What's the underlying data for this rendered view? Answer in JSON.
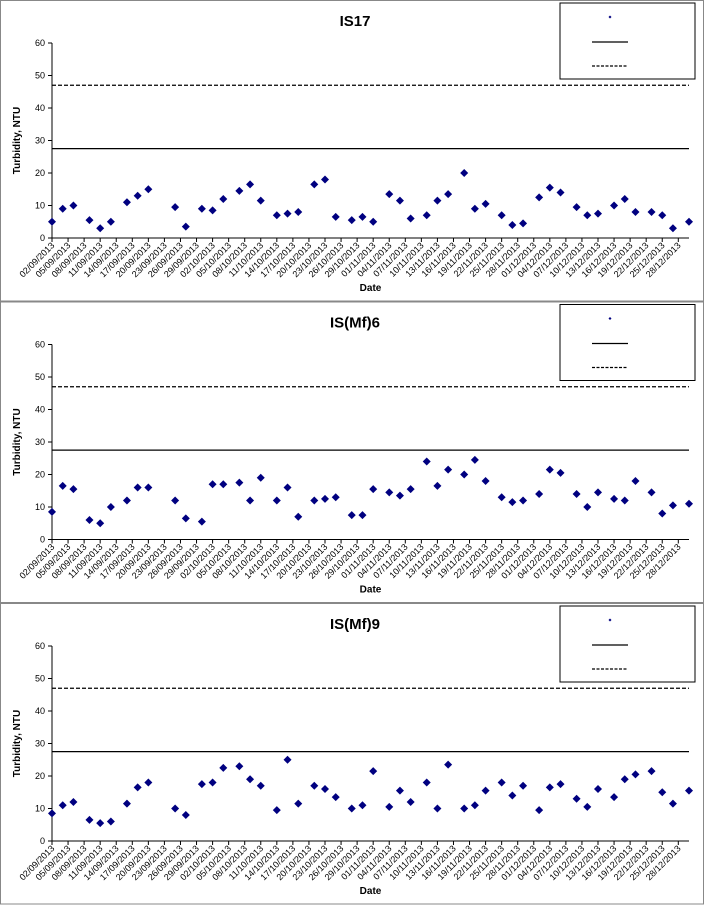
{
  "chart_data": [
    {
      "type": "scatter",
      "title": "IS17",
      "xlabel": "Date",
      "ylabel": "Turbidity, NTU",
      "x": [
        "02/09/2013",
        "04/09/2013",
        "06/09/2013",
        "09/09/2013",
        "11/09/2013",
        "13/09/2013",
        "16/09/2013",
        "18/09/2013",
        "20/09/2013",
        "25/09/2013",
        "27/09/2013",
        "30/09/2013",
        "02/10/2013",
        "04/10/2013",
        "07/10/2013",
        "09/10/2013",
        "11/10/2013",
        "14/10/2013",
        "16/10/2013",
        "18/10/2013",
        "21/10/2013",
        "23/10/2013",
        "25/10/2013",
        "28/10/2013",
        "30/10/2013",
        "01/11/2013",
        "04/11/2013",
        "06/11/2013",
        "08/11/2013",
        "11/11/2013",
        "13/11/2013",
        "15/11/2013",
        "18/11/2013",
        "20/11/2013",
        "22/11/2013",
        "25/11/2013",
        "27/11/2013",
        "29/11/2013",
        "02/12/2013",
        "04/12/2013",
        "06/12/2013",
        "09/12/2013",
        "11/12/2013",
        "13/12/2013",
        "16/12/2013",
        "18/12/2013",
        "20/12/2013",
        "23/12/2013",
        "25/12/2013",
        "27/12/2013",
        "30/12/2013"
      ],
      "series": [
        {
          "color": "#000080",
          "values": [
            5,
            9,
            10,
            5.5,
            3,
            5,
            11,
            13,
            15,
            9.5,
            3.5,
            9,
            8.5,
            12,
            14.5,
            16.5,
            11.5,
            7,
            7.5,
            8,
            16.5,
            18,
            6.5,
            5.5,
            6.5,
            5,
            13.5,
            11.5,
            6,
            7,
            11.5,
            13.5,
            20,
            9,
            10.5,
            7,
            4,
            4.5,
            12.5,
            15.5,
            14,
            9.5,
            7,
            7.5,
            10,
            12,
            8,
            8,
            7,
            3,
            5
          ]
        }
      ],
      "hlines": [
        {
          "value": 27.5,
          "style": "solid"
        },
        {
          "value": 47,
          "style": "dashed"
        }
      ],
      "legend": "upper right",
      "xlim": [
        "02/09/2013",
        "30/12/2013"
      ],
      "xticks": [
        "02/09/2013",
        "05/09/2013",
        "08/09/2013",
        "11/09/2013",
        "14/09/2013",
        "17/09/2013",
        "20/09/2013",
        "23/09/2013",
        "26/09/2013",
        "29/09/2013",
        "02/10/2013",
        "05/10/2013",
        "08/10/2013",
        "11/10/2013",
        "14/10/2013",
        "17/10/2013",
        "20/10/2013",
        "23/10/2013",
        "26/10/2013",
        "29/10/2013",
        "01/11/2013",
        "04/11/2013",
        "07/11/2013",
        "10/11/2013",
        "13/11/2013",
        "16/11/2013",
        "19/11/2013",
        "22/11/2013",
        "25/11/2013",
        "28/11/2013",
        "01/12/2013",
        "04/12/2013",
        "07/12/2013",
        "10/12/2013",
        "13/12/2013",
        "16/12/2013",
        "19/12/2013",
        "22/12/2013",
        "25/12/2013",
        "28/12/2013"
      ],
      "ylim": [
        0,
        60
      ],
      "yticks": [
        0,
        10,
        20,
        30,
        40,
        50,
        60
      ]
    },
    {
      "type": "scatter",
      "title": "IS(Mf)6",
      "xlabel": "Date",
      "ylabel": "Turbidity, NTU",
      "x": [
        "02/09/2013",
        "04/09/2013",
        "06/09/2013",
        "09/09/2013",
        "11/09/2013",
        "13/09/2013",
        "16/09/2013",
        "18/09/2013",
        "20/09/2013",
        "25/09/2013",
        "27/09/2013",
        "30/09/2013",
        "02/10/2013",
        "04/10/2013",
        "07/10/2013",
        "09/10/2013",
        "11/10/2013",
        "14/10/2013",
        "16/10/2013",
        "18/10/2013",
        "21/10/2013",
        "23/10/2013",
        "25/10/2013",
        "28/10/2013",
        "30/10/2013",
        "01/11/2013",
        "04/11/2013",
        "06/11/2013",
        "08/11/2013",
        "11/11/2013",
        "13/11/2013",
        "15/11/2013",
        "18/11/2013",
        "20/11/2013",
        "22/11/2013",
        "25/11/2013",
        "27/11/2013",
        "29/11/2013",
        "02/12/2013",
        "04/12/2013",
        "06/12/2013",
        "09/12/2013",
        "11/12/2013",
        "13/12/2013",
        "16/12/2013",
        "18/12/2013",
        "20/12/2013",
        "23/12/2013",
        "25/12/2013",
        "27/12/2013",
        "30/12/2013"
      ],
      "series": [
        {
          "color": "#000080",
          "values": [
            8.5,
            16.5,
            15.5,
            6,
            5,
            10,
            12,
            16,
            16,
            12,
            6.5,
            5.5,
            17,
            17,
            17.5,
            12,
            19,
            12,
            16,
            7,
            12,
            12.5,
            13,
            7.5,
            7.5,
            15.5,
            14.5,
            13.5,
            15.5,
            24,
            16.5,
            21.5,
            20,
            24.5,
            18,
            13,
            11.5,
            12,
            14,
            21.5,
            20.5,
            14,
            10,
            14.5,
            12.5,
            12,
            18,
            14.5,
            8,
            10.5,
            11
          ]
        }
      ],
      "hlines": [
        {
          "value": 27.5,
          "style": "solid"
        },
        {
          "value": 47,
          "style": "dashed"
        }
      ],
      "legend": "upper right",
      "xlim": [
        "02/09/2013",
        "30/12/2013"
      ],
      "xticks": [
        "02/09/2013",
        "05/09/2013",
        "08/09/2013",
        "11/09/2013",
        "14/09/2013",
        "17/09/2013",
        "20/09/2013",
        "23/09/2013",
        "26/09/2013",
        "29/09/2013",
        "02/10/2013",
        "05/10/2013",
        "08/10/2013",
        "11/10/2013",
        "14/10/2013",
        "17/10/2013",
        "20/10/2013",
        "23/10/2013",
        "26/10/2013",
        "29/10/2013",
        "01/11/2013",
        "04/11/2013",
        "07/11/2013",
        "10/11/2013",
        "13/11/2013",
        "16/11/2013",
        "19/11/2013",
        "22/11/2013",
        "25/11/2013",
        "28/11/2013",
        "01/12/2013",
        "04/12/2013",
        "07/12/2013",
        "10/12/2013",
        "13/12/2013",
        "16/12/2013",
        "19/12/2013",
        "22/12/2013",
        "25/12/2013",
        "28/12/2013"
      ],
      "ylim": [
        0,
        60
      ],
      "yticks": [
        0,
        10,
        20,
        30,
        40,
        50,
        60
      ]
    },
    {
      "type": "scatter",
      "title": "IS(Mf)9",
      "xlabel": "Date",
      "ylabel": "Turbidity, NTU",
      "x": [
        "02/09/2013",
        "04/09/2013",
        "06/09/2013",
        "09/09/2013",
        "11/09/2013",
        "13/09/2013",
        "16/09/2013",
        "18/09/2013",
        "20/09/2013",
        "25/09/2013",
        "27/09/2013",
        "30/09/2013",
        "02/10/2013",
        "04/10/2013",
        "07/10/2013",
        "09/10/2013",
        "11/10/2013",
        "14/10/2013",
        "16/10/2013",
        "18/10/2013",
        "21/10/2013",
        "23/10/2013",
        "25/10/2013",
        "28/10/2013",
        "30/10/2013",
        "01/11/2013",
        "04/11/2013",
        "06/11/2013",
        "08/11/2013",
        "11/11/2013",
        "13/11/2013",
        "15/11/2013",
        "18/11/2013",
        "20/11/2013",
        "22/11/2013",
        "25/11/2013",
        "27/11/2013",
        "29/11/2013",
        "02/12/2013",
        "04/12/2013",
        "06/12/2013",
        "09/12/2013",
        "11/12/2013",
        "13/12/2013",
        "16/12/2013",
        "18/12/2013",
        "20/12/2013",
        "23/12/2013",
        "25/12/2013",
        "27/12/2013",
        "30/12/2013"
      ],
      "series": [
        {
          "color": "#000080",
          "values": [
            8.5,
            11,
            12,
            6.5,
            5.5,
            6,
            11.5,
            16.5,
            18,
            10,
            8,
            17.5,
            18,
            22.5,
            23,
            19,
            17,
            9.5,
            25,
            11.5,
            17,
            16,
            13.5,
            10,
            11,
            21.5,
            10.5,
            15.5,
            12,
            18,
            10,
            23.5,
            10,
            11,
            15.5,
            18,
            14,
            17,
            9.5,
            16.5,
            17.5,
            13,
            10.5,
            16,
            13.5,
            19,
            20.5,
            21.5,
            15,
            11.5,
            15.5
          ]
        }
      ],
      "hlines": [
        {
          "value": 27.5,
          "style": "solid"
        },
        {
          "value": 47,
          "style": "dashed"
        }
      ],
      "legend": "upper right",
      "xlim": [
        "02/09/2013",
        "30/12/2013"
      ],
      "xticks": [
        "02/09/2013",
        "05/09/2013",
        "08/09/2013",
        "11/09/2013",
        "14/09/2013",
        "17/09/2013",
        "20/09/2013",
        "23/09/2013",
        "26/09/2013",
        "29/09/2013",
        "02/10/2013",
        "05/10/2013",
        "08/10/2013",
        "11/10/2013",
        "14/10/2013",
        "17/10/2013",
        "20/10/2013",
        "23/10/2013",
        "26/10/2013",
        "29/10/2013",
        "01/11/2013",
        "04/11/2013",
        "07/11/2013",
        "10/11/2013",
        "13/11/2013",
        "16/11/2013",
        "19/11/2013",
        "22/11/2013",
        "25/11/2013",
        "28/11/2013",
        "01/12/2013",
        "04/12/2013",
        "07/12/2013",
        "10/12/2013",
        "13/12/2013",
        "16/12/2013",
        "19/12/2013",
        "22/12/2013",
        "25/12/2013",
        "28/12/2013"
      ],
      "ylim": [
        0,
        60
      ],
      "yticks": [
        0,
        10,
        20,
        30,
        40,
        50,
        60
      ]
    }
  ]
}
